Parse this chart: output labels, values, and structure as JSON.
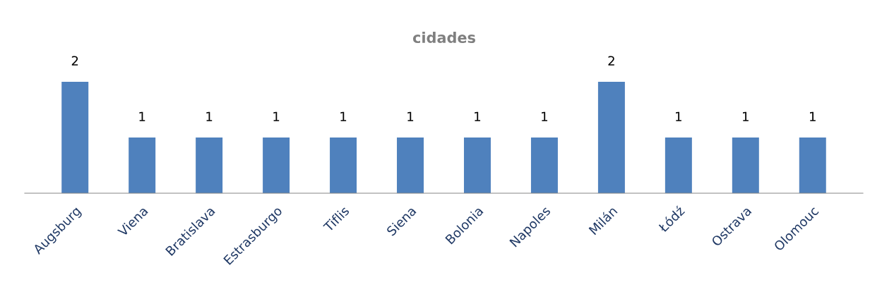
{
  "chart_data": {
    "type": "bar",
    "title": "cidades",
    "categories": [
      "Augsburg",
      "Viena",
      "Bratislava",
      "Estrasburgo",
      "Tiflis",
      "Siena",
      "Bolonia",
      "Napoles",
      "Milán",
      "Łódź",
      "Ostrava",
      "Olomouc"
    ],
    "values": [
      2,
      1,
      1,
      1,
      1,
      1,
      1,
      1,
      2,
      1,
      1,
      1
    ],
    "color": "#4f81bd",
    "data_labels": true,
    "grid": false,
    "legend": false
  }
}
